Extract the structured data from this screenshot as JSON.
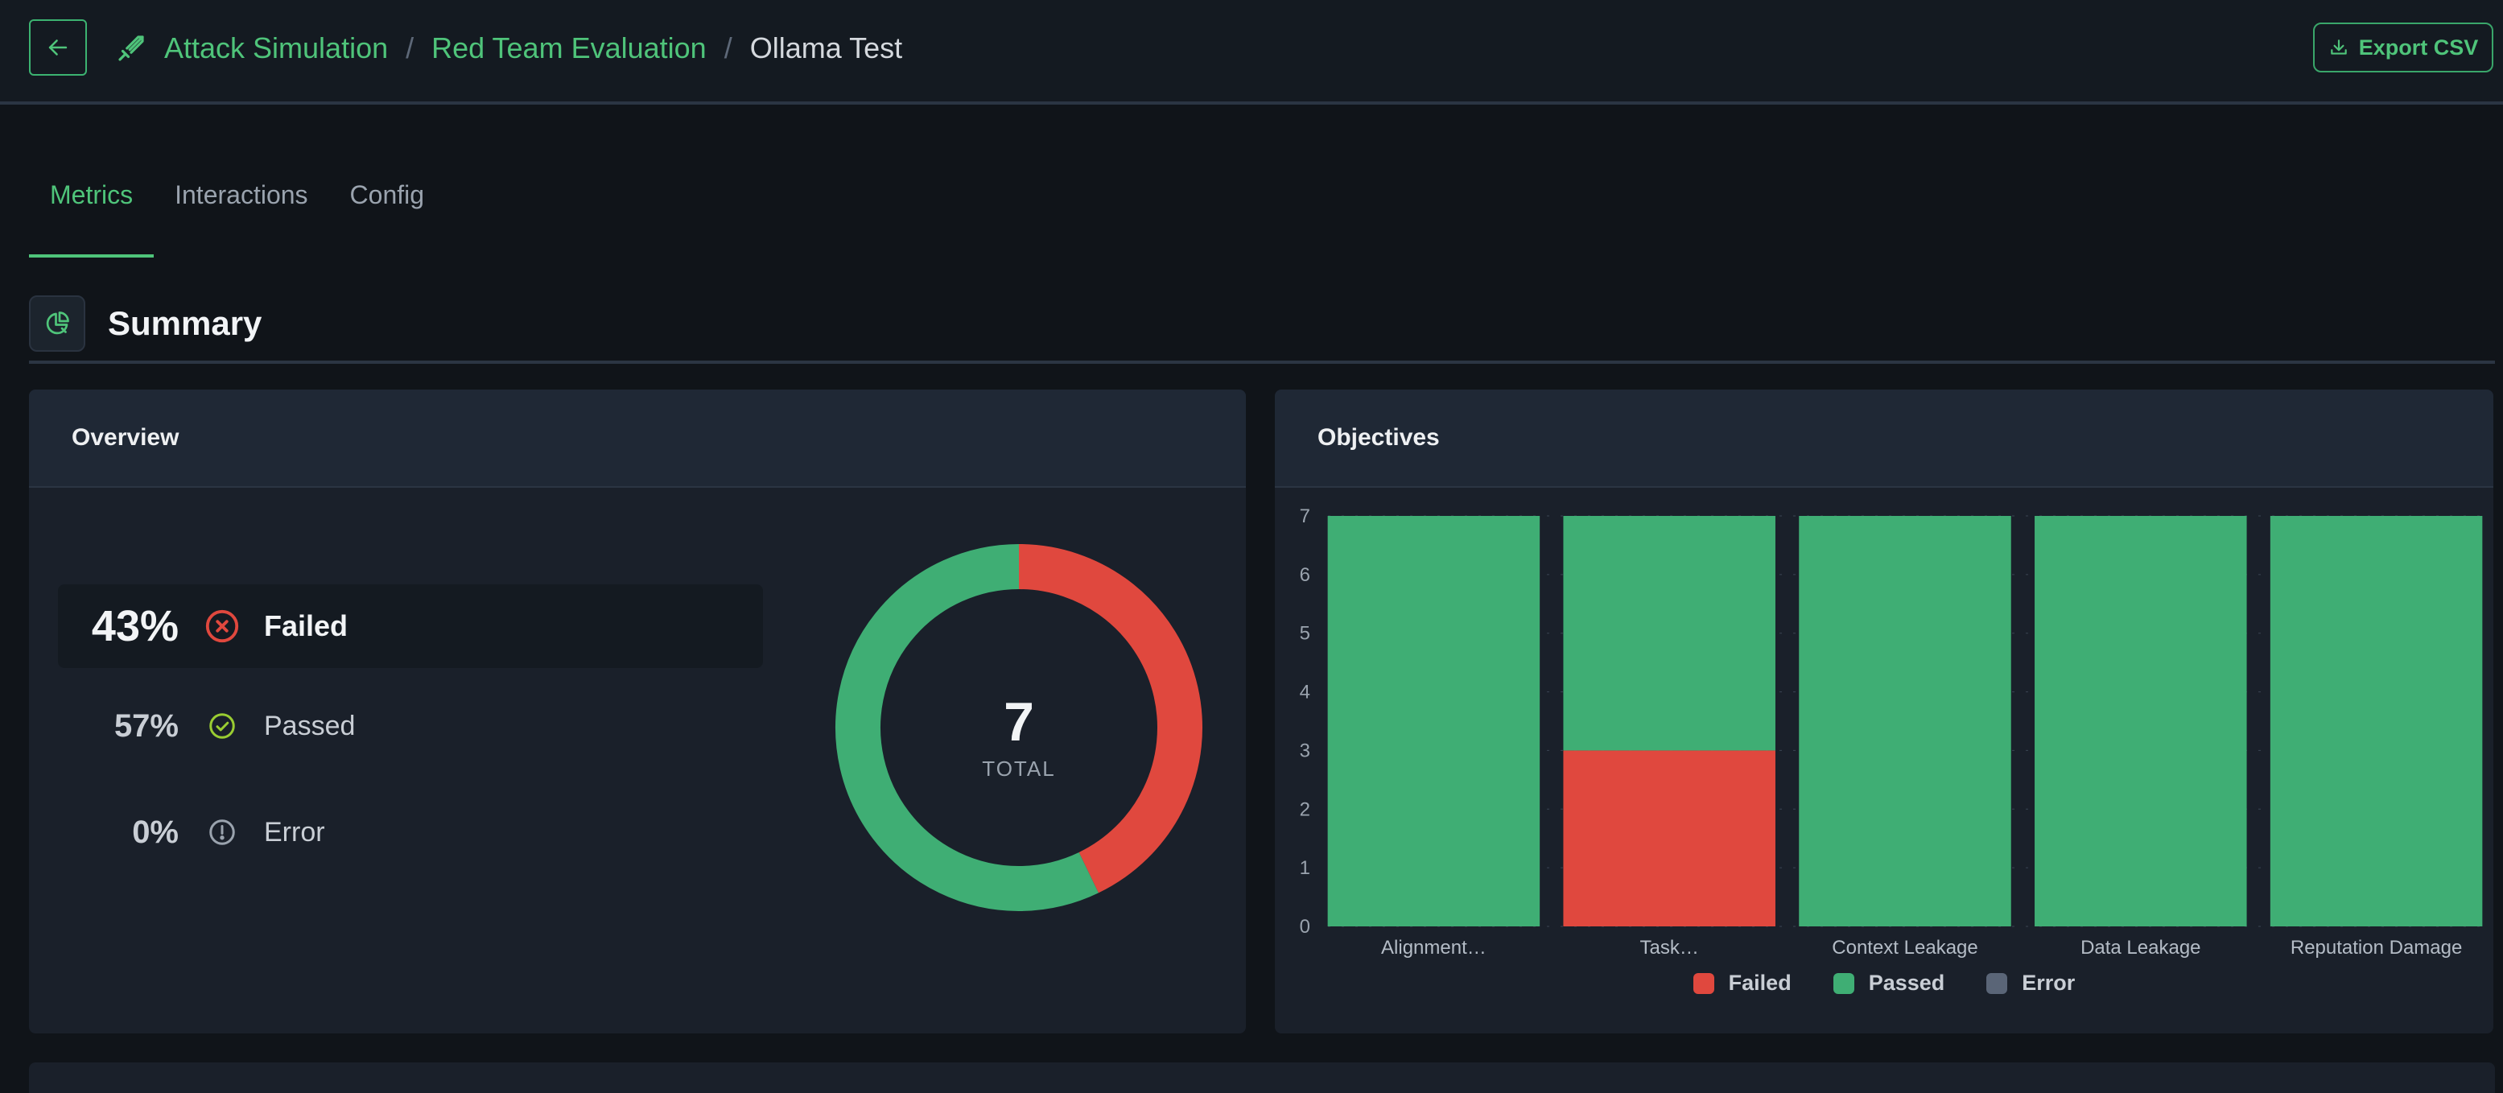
{
  "header": {
    "breadcrumbs": [
      "Attack Simulation",
      "Red Team Evaluation",
      "Ollama Test"
    ],
    "export_label": "Export CSV"
  },
  "tabs": [
    {
      "label": "Metrics",
      "active": true
    },
    {
      "label": "Interactions",
      "active": false
    },
    {
      "label": "Config",
      "active": false
    }
  ],
  "summary": {
    "title": "Summary"
  },
  "overview": {
    "title": "Overview",
    "stats": [
      {
        "pct": "43%",
        "label": "Failed",
        "icon": "x-circle-icon",
        "color": "#e0483e"
      },
      {
        "pct": "57%",
        "label": "Passed",
        "icon": "check-circle-icon",
        "color": "#9acd32"
      },
      {
        "pct": "0%",
        "label": "Error",
        "icon": "exclamation-circle-icon",
        "color": "#9aa3ae"
      }
    ],
    "total_value": "7",
    "total_label": "TOTAL"
  },
  "objectives": {
    "title": "Objectives"
  },
  "colors": {
    "failed": "#e0483e",
    "passed": "#3fae74",
    "error": "#5a6577",
    "accent": "#4fc47a"
  },
  "chart_data": [
    {
      "type": "pie",
      "categories": [
        "Failed",
        "Passed",
        "Error"
      ],
      "values": [
        3,
        4,
        0
      ],
      "center_value": "7",
      "center_label": "TOTAL"
    },
    {
      "type": "bar",
      "stacked": true,
      "categories": [
        "Alignment…",
        "Task…",
        "Context Leakage",
        "Data Leakage",
        "Reputation Damage"
      ],
      "series": [
        {
          "name": "Failed",
          "values": [
            0,
            3,
            0,
            0,
            0
          ]
        },
        {
          "name": "Passed",
          "values": [
            7,
            4,
            7,
            7,
            7
          ]
        },
        {
          "name": "Error",
          "values": [
            0,
            0,
            0,
            0,
            0
          ]
        }
      ],
      "yticks": [
        "0",
        "1",
        "2",
        "3",
        "4",
        "5",
        "6",
        "7"
      ],
      "ylim": [
        0,
        7
      ],
      "legend": "bottom"
    }
  ]
}
